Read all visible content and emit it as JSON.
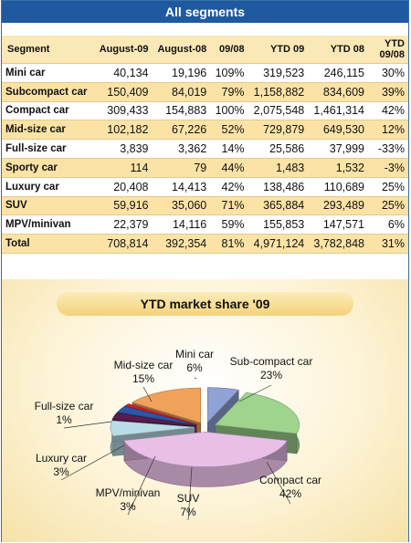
{
  "table": {
    "title": "All segments",
    "headers": [
      "Segment",
      "August-09",
      "August-08",
      "09/08",
      "YTD 09",
      "YTD 08",
      "YTD 09/08"
    ],
    "rows": [
      [
        "Mini car",
        "40,134",
        "19,196",
        "109%",
        "319,523",
        "246,115",
        "30%"
      ],
      [
        "Subcompact car",
        "150,409",
        "84,019",
        "79%",
        "1,158,882",
        "834,609",
        "39%"
      ],
      [
        "Compact car",
        "309,433",
        "154,883",
        "100%",
        "2,075,548",
        "1,461,314",
        "42%"
      ],
      [
        "Mid-size car",
        "102,182",
        "67,226",
        "52%",
        "729,879",
        "649,530",
        "12%"
      ],
      [
        "Full-size car",
        "3,839",
        "3,362",
        "14%",
        "25,586",
        "37,999",
        "-33%"
      ],
      [
        "Sporty car",
        "114",
        "79",
        "44%",
        "1,483",
        "1,532",
        "-3%"
      ],
      [
        "Luxury car",
        "20,408",
        "14,413",
        "42%",
        "138,486",
        "110,689",
        "25%"
      ],
      [
        "SUV",
        "59,916",
        "35,060",
        "71%",
        "365,884",
        "293,489",
        "25%"
      ],
      [
        "MPV/minivan",
        "22,379",
        "14,116",
        "59%",
        "155,853",
        "147,571",
        "6%"
      ],
      [
        "Total",
        "708,814",
        "392,354",
        "81%",
        "4,971,124",
        "3,782,848",
        "31%"
      ]
    ]
  },
  "chart_data": {
    "type": "pie",
    "title": "YTD market share '09",
    "slices": [
      {
        "label": "Mini car",
        "value": 6,
        "color": "#8fa3d6"
      },
      {
        "label": "Sub-compact car",
        "value": 23,
        "color": "#9fd48f"
      },
      {
        "label": "Compact car",
        "value": 42,
        "color": "#e9bfe8"
      },
      {
        "label": "SUV",
        "value": 7,
        "color": "#b9dde8"
      },
      {
        "label": "MPV/minivan",
        "value": 3,
        "color": "#5b1b4e"
      },
      {
        "label": "Luxury car",
        "value": 3,
        "color": "#2b57a6"
      },
      {
        "label": "Full-size car",
        "value": 1,
        "color": "#d21f2a"
      },
      {
        "label": "Mid-size car",
        "value": 15,
        "color": "#f0a25a"
      }
    ]
  }
}
